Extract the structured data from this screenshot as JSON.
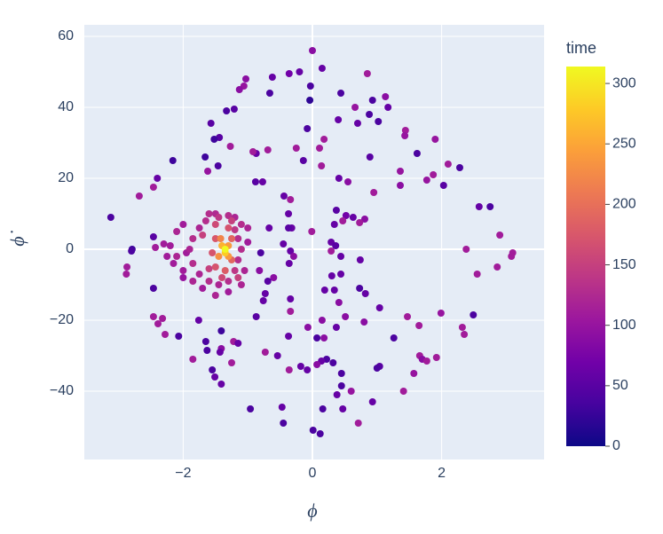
{
  "chart_data": {
    "type": "scatter",
    "x_label": "ϕ",
    "y_label": "ϕ̇",
    "color_title": "time",
    "xlim": [
      -3.53,
      3.585
    ],
    "ylim": [
      -59.25,
      63.25
    ],
    "clim": [
      0,
      314
    ],
    "xticks": [
      {
        "value": -2,
        "label": "−2"
      },
      0,
      2
    ],
    "yticks": [
      {
        "value": -40,
        "label": "−40"
      },
      {
        "value": -20,
        "label": "−20"
      },
      0,
      20,
      40,
      60
    ],
    "cticks": [
      0,
      50,
      100,
      150,
      200,
      250,
      300
    ],
    "grid": true,
    "colorscale": [
      "#0d0887",
      "#46039f",
      "#7201a8",
      "#9c179e",
      "#bd3786",
      "#d8576b",
      "#ed7953",
      "#fb9f3a",
      "#fdca26",
      "#f0f921"
    ],
    "x": [
      0,
      0.15,
      -0.2,
      -0.36,
      0.85,
      -0.62,
      -1.03,
      -1.06,
      -1.13,
      -0.03,
      0.44,
      -0.66,
      -0.04,
      1.13,
      0.93,
      1.17,
      0.66,
      -1.21,
      -1.33,
      0.88,
      1.02,
      0.4,
      0.7,
      -1.57,
      -0.08,
      1.44,
      -1.44,
      -1.52,
      1.43,
      1.9,
      0.18,
      -1.27,
      -0.25,
      -0.69,
      -0.87,
      -0.92,
      0.11,
      1.62,
      -1.66,
      0.89,
      -0.14,
      -2.16,
      2.1,
      -1.46,
      2.28,
      -1.62,
      0.14,
      1.36,
      1.87,
      -2.4,
      1.77,
      0.41,
      -0.88,
      -0.77,
      0.55,
      2.03,
      1.36,
      -2.46,
      -2.68,
      0.95,
      -0.44,
      -0.34,
      2.58,
      2.75,
      0.37,
      -0.37,
      -3.12,
      0.52,
      0.63,
      0.47,
      0.81,
      0.73,
      0.34,
      -0.32,
      -0.37,
      -0.67,
      -0.01,
      2.9,
      -2.46,
      0.29,
      0.36,
      -0.45,
      -2.43,
      -2.79,
      -2.8,
      3.1,
      3.08,
      2.38,
      0.29,
      -0.34,
      -0.8,
      -0.29,
      0.44,
      0.74,
      -0.36,
      -2.87,
      2.86,
      -0.82,
      -2.88,
      2.55,
      0.3,
      0.44,
      -0.6,
      -0.69,
      0.73,
      0.19,
      0.34,
      -2.46,
      -0.73,
      0.82,
      -0.34,
      -0.76,
      0.41,
      1.04,
      -0.34,
      1.99,
      1.47,
      -2.46,
      2.49,
      -0.87,
      -2.32,
      -1.76,
      0.51,
      0.8,
      0.15,
      -2.39,
      -0.07,
      1.65,
      0.37,
      2.32,
      -1.41,
      -2.28,
      2.35,
      -2.07,
      -0.37,
      0.18,
      1.26,
      0.07,
      -1.65,
      -1.22,
      -1.15,
      -1.63,
      -1.41,
      -0.73,
      -1.43,
      -0.54,
      1.66,
      1.92,
      1.7,
      1.77,
      0.22,
      -1.85,
      0.14,
      0.32,
      -1.25,
      -0.18,
      0.07,
      1.04,
      1.0,
      -1.55,
      -0.36,
      -0.08,
      0.45,
      1.57,
      -1.51,
      -1.41,
      0.45,
      1.41,
      0.6,
      0.38,
      0.93,
      -0.96,
      -0.47,
      0.16,
      0.47,
      0.71,
      -0.45,
      0.01,
      0.12,
      -2.0,
      -2.0,
      -2.2,
      -2.0,
      -1.7,
      -1.3,
      -1.0,
      -1.95,
      -2.25,
      -2.3,
      -2.15,
      -1.75,
      -1.75,
      -2.1,
      -2.1,
      -1.85,
      -1.5,
      -1.1,
      -1.05,
      -1.0,
      -1.9,
      -1.2,
      -1.45,
      -1.5,
      -1.6,
      -1.3,
      -1.1,
      -1.15,
      -1.1,
      -1.15,
      -1.3,
      -1.6,
      -1.85,
      -1.85,
      -1.65,
      -1.45,
      -1.2,
      -1.2,
      -1.6,
      -1.7,
      -1.15,
      -1.25,
      -1.5,
      -1.4,
      -1.3,
      -1.5,
      -1.55,
      -1.5,
      -1.35,
      -1.25,
      -1.25,
      -1.42,
      -1.45,
      -1.3,
      -1.3,
      -1.4,
      -1.35,
      -1.35
    ],
    "values": [
      56,
      51,
      50,
      49.5,
      49.5,
      48.5,
      48,
      46,
      45,
      46,
      44,
      44,
      42,
      43,
      42,
      40,
      40,
      39.5,
      39,
      38,
      36,
      36.5,
      35.5,
      35.5,
      34,
      33.5,
      31.5,
      31,
      32,
      31,
      31,
      29,
      28.5,
      28,
      27,
      27.5,
      28.5,
      27,
      26,
      26,
      25,
      25,
      24,
      23.5,
      23,
      22,
      23.5,
      22,
      21,
      20,
      19.5,
      20,
      19,
      19,
      19,
      18,
      18,
      17.5,
      15,
      16,
      15,
      14,
      12,
      12,
      11,
      10,
      9,
      9.5,
      9,
      8,
      8.5,
      7.5,
      7,
      6,
      6,
      6,
      5,
      4,
      3.5,
      2,
      1,
      1.5,
      0.5,
      0,
      -0.5,
      -1,
      -2,
      0,
      -0.5,
      -0.5,
      -1,
      -2,
      -2,
      -3,
      -4,
      -5,
      -5,
      -6,
      -7,
      -7,
      -7.5,
      -7,
      -8,
      -9,
      -11,
      -11.5,
      -11.5,
      -11,
      -12.5,
      -12.5,
      -14,
      -14.5,
      -15,
      -16.5,
      -17.5,
      -18,
      -19,
      -19,
      -18.5,
      -19,
      -19.5,
      -20,
      -19,
      -20.5,
      -20,
      -21,
      -22,
      -21.5,
      -22,
      -22,
      -23,
      -24,
      -24,
      -24.5,
      -24.5,
      -25,
      -25,
      -25,
      -26,
      -26,
      -26.5,
      -28.5,
      -28,
      -29,
      -29,
      -30,
      -30,
      -30.5,
      -31,
      -31.5,
      -31,
      -31,
      -31.5,
      -32,
      -32,
      -33,
      -32.5,
      -33,
      -33.5,
      -34,
      -34,
      -34,
      -35,
      -35,
      -36,
      -38,
      -38.5,
      -40,
      -40,
      -41,
      -43,
      -45,
      -44.5,
      -45,
      -45,
      -49,
      -49,
      -51,
      -52,
      -8,
      7,
      1,
      -6,
      -11,
      -12,
      2,
      -1,
      -2,
      1.5,
      -4,
      -7,
      6,
      5,
      -2,
      -9,
      -13,
      -10,
      -6,
      6,
      0,
      9,
      -10,
      10,
      10,
      9.5,
      7,
      3,
      0,
      -3,
      -9,
      -9,
      -4,
      3,
      8,
      9,
      5.5,
      -6,
      -5.5,
      4,
      -8,
      8,
      7,
      -8,
      6,
      -5,
      -1,
      3,
      -6,
      3,
      -3,
      3,
      -2,
      1,
      -2,
      1,
      -1,
      0
    ],
    "color_values": [
      90,
      60,
      60,
      70,
      110,
      60,
      90,
      100,
      90,
      40,
      40,
      40,
      20,
      90,
      40,
      60,
      100,
      50,
      40,
      40,
      40,
      60,
      60,
      50,
      40,
      110,
      50,
      30,
      100,
      100,
      110,
      110,
      110,
      110,
      60,
      110,
      110,
      40,
      30,
      50,
      50,
      30,
      110,
      40,
      40,
      100,
      110,
      100,
      110,
      60,
      100,
      60,
      50,
      60,
      90,
      50,
      90,
      110,
      110,
      110,
      60,
      110,
      60,
      40,
      50,
      60,
      40,
      70,
      60,
      110,
      90,
      110,
      60,
      60,
      50,
      60,
      110,
      110,
      50,
      60,
      50,
      60,
      110,
      30,
      40,
      110,
      110,
      110,
      110,
      60,
      40,
      90,
      60,
      60,
      60,
      110,
      110,
      90,
      110,
      110,
      60,
      60,
      90,
      50,
      40,
      60,
      60,
      40,
      60,
      60,
      60,
      60,
      90,
      60,
      110,
      100,
      110,
      110,
      40,
      50,
      110,
      60,
      90,
      90,
      90,
      110,
      90,
      110,
      60,
      110,
      30,
      110,
      110,
      40,
      60,
      90,
      40,
      40,
      40,
      110,
      60,
      40,
      90,
      110,
      60,
      60,
      110,
      110,
      90,
      110,
      40,
      110,
      60,
      40,
      110,
      60,
      90,
      50,
      40,
      40,
      110,
      60,
      40,
      100,
      60,
      60,
      40,
      110,
      100,
      60,
      60,
      40,
      60,
      40,
      60,
      110,
      40,
      40,
      40,
      100,
      110,
      110,
      110,
      110,
      110,
      110,
      110,
      110,
      110,
      110,
      120,
      120,
      120,
      120,
      120,
      120,
      120,
      120,
      120,
      120,
      120,
      120,
      125,
      130,
      130,
      130,
      130,
      130,
      130,
      130,
      130,
      130,
      130,
      130,
      140,
      140,
      140,
      150,
      150,
      150,
      150,
      160,
      160,
      170,
      170,
      170,
      175,
      180,
      190,
      190,
      220,
      230,
      240,
      240,
      260,
      280,
      314
    ]
  }
}
